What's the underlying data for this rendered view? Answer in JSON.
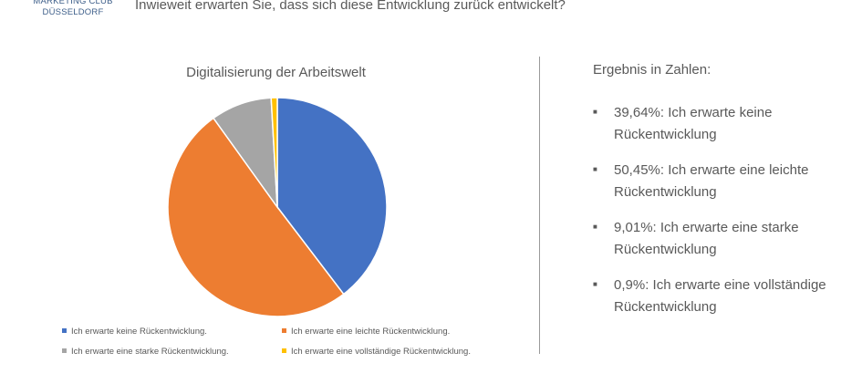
{
  "logo": {
    "line1": "MARKETING CLUB",
    "line2": "DÜSSELDORF"
  },
  "question": "Inwieweit erwarten Sie, dass sich diese Entwicklung zurück entwickelt?",
  "chart_data": {
    "type": "pie",
    "title": "Digitalisierung der Arbeitswelt",
    "categories": [
      "Ich erwarte keine Rückentwicklung.",
      "Ich erwarte eine leichte Rückentwicklung.",
      "Ich erwarte eine starke Rückentwicklung.",
      "Ich erwarte eine vollständige Rückentwicklung."
    ],
    "values": [
      39.64,
      50.45,
      9.01,
      0.9
    ],
    "colors": [
      "#4472c4",
      "#ed7d31",
      "#a5a5a5",
      "#ffc000"
    ],
    "legend_position": "bottom"
  },
  "results": {
    "title": "Ergebnis in Zahlen:",
    "bullet_icon": "square-bullet-icon",
    "items": [
      "39,64%:  Ich erwarte keine Rückentwicklung",
      "50,45%: Ich erwarte eine leichte Rückentwicklung",
      "9,01%: Ich erwarte eine starke Rückentwicklung",
      "0,9%: Ich erwarte eine vollständige Rückentwicklung"
    ]
  }
}
